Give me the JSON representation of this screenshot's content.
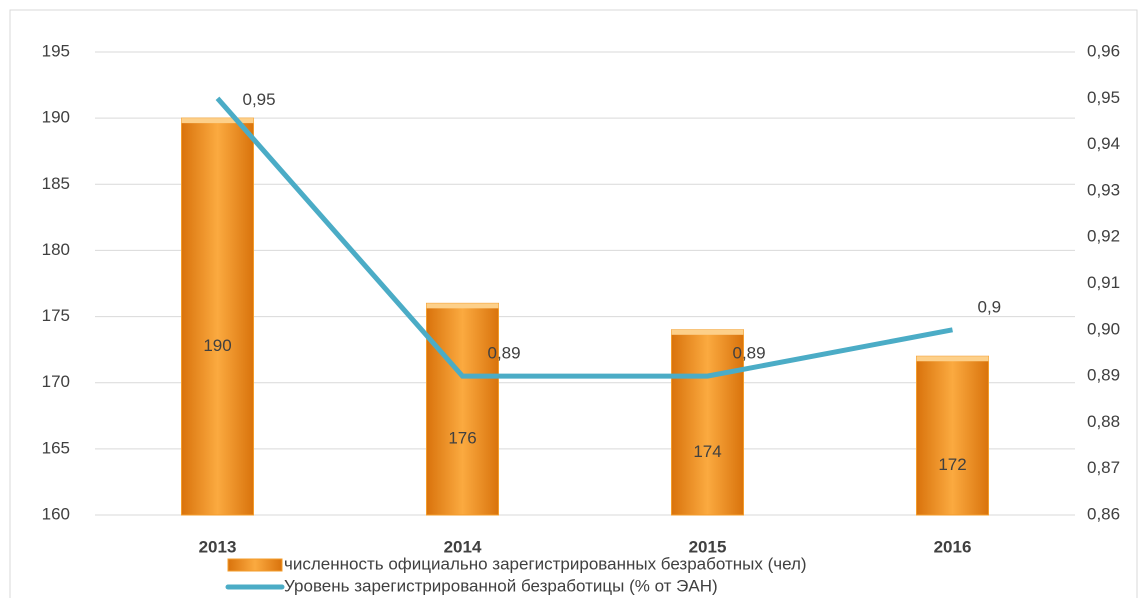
{
  "chart_data": {
    "type": "bar_line",
    "categories": [
      "2013",
      "2014",
      "2015",
      "2016"
    ],
    "series": [
      {
        "name": "численность официально зарегистрированных безработных (чел)",
        "type": "bar",
        "color": "#f39c2b",
        "values": [
          190,
          176,
          174,
          172
        ]
      },
      {
        "name": "Уровень зарегистрированной безработицы (% от ЭАН)",
        "type": "line",
        "axis": "y2",
        "color": "#4bacc6",
        "values": [
          0.95,
          0.89,
          0.89,
          0.9
        ],
        "value_labels": [
          "0,95",
          "0,89",
          "0,89",
          "0,9"
        ]
      }
    ],
    "ylim": [
      160,
      195
    ],
    "yticks": [
      160,
      165,
      170,
      175,
      180,
      185,
      190,
      195
    ],
    "y2lim": [
      0.86,
      0.96
    ],
    "y2ticks": [
      {
        "value": 0.86,
        "label": "0,86"
      },
      {
        "value": 0.87,
        "label": "0,87"
      },
      {
        "value": 0.88,
        "label": "0,88"
      },
      {
        "value": 0.89,
        "label": "0,89"
      },
      {
        "value": 0.9,
        "label": "0,90"
      },
      {
        "value": 0.91,
        "label": "0,91"
      },
      {
        "value": 0.92,
        "label": "0,92"
      },
      {
        "value": 0.93,
        "label": "0,93"
      },
      {
        "value": 0.94,
        "label": "0,94"
      },
      {
        "value": 0.95,
        "label": "0,95"
      },
      {
        "value": 0.96,
        "label": "0,96"
      }
    ],
    "grid": true,
    "legend": "bottom"
  }
}
